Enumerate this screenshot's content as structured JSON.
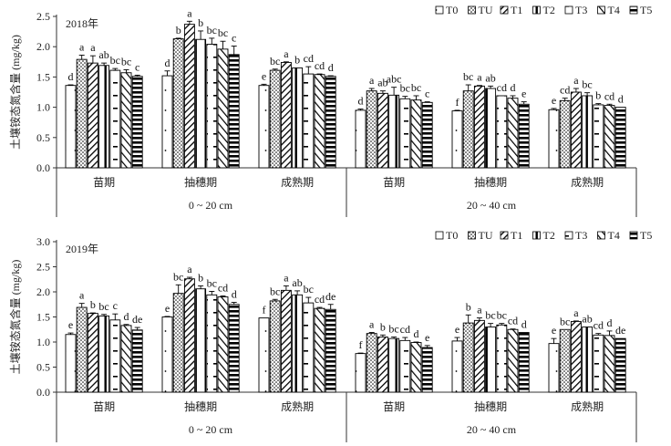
{
  "chart_data": [
    {
      "type": "bar",
      "title": "2018年",
      "ylabel": "土壤铵态氮含量 (mg/kg)",
      "ylim": [
        0,
        2.5
      ],
      "yticks": [
        "0.0",
        "0.5",
        "1.0",
        "1.5",
        "2.0",
        "2.5"
      ],
      "legend_position": "top-right",
      "depths": [
        "0 ~ 20 cm",
        "20 ~ 40 cm"
      ],
      "stages": [
        "苗期",
        "抽穗期",
        "成熟期"
      ],
      "series_names": [
        "T0",
        "TU",
        "T1",
        "T2",
        "T3",
        "T4",
        "T5"
      ],
      "groups": [
        {
          "depth": "0 ~ 20 cm",
          "stage": "苗期",
          "values": [
            1.36,
            1.79,
            1.73,
            1.69,
            1.61,
            1.57,
            1.51
          ],
          "errors": [
            0.01,
            0.07,
            0.12,
            0.04,
            0.03,
            0.05,
            0.02
          ],
          "letters": [
            "d",
            "a",
            "a",
            "ab",
            "bc",
            "bc",
            "c"
          ]
        },
        {
          "depth": "0 ~ 20 cm",
          "stage": "抽穗期",
          "values": [
            1.52,
            2.13,
            2.37,
            2.12,
            2.04,
            1.96,
            1.87
          ],
          "errors": [
            0.08,
            0.01,
            0.05,
            0.14,
            0.1,
            0.13,
            0.14
          ],
          "letters": [
            "d",
            "b",
            "a",
            "b",
            "bc",
            "bc",
            "c"
          ]
        },
        {
          "depth": "0 ~ 20 cm",
          "stage": "成熟期",
          "values": [
            1.36,
            1.61,
            1.74,
            1.65,
            1.55,
            1.54,
            1.51
          ],
          "errors": [
            0.02,
            0.02,
            0.01,
            0.0,
            0.12,
            0.01,
            0.01
          ],
          "letters": [
            "e",
            "bc",
            "a",
            "b",
            "cd",
            "cd",
            "d"
          ]
        },
        {
          "depth": "20 ~ 40 cm",
          "stage": "苗期",
          "values": [
            0.95,
            1.27,
            1.23,
            1.2,
            1.14,
            1.12,
            1.08
          ],
          "errors": [
            0.02,
            0.04,
            0.04,
            0.13,
            0.04,
            0.07,
            0.01
          ],
          "letters": [
            "d",
            "a",
            "ab",
            "abc",
            "bc",
            "bc",
            "c"
          ]
        },
        {
          "depth": "20 ~ 40 cm",
          "stage": "抽穗期",
          "values": [
            0.94,
            1.27,
            1.35,
            1.31,
            1.19,
            1.15,
            1.05
          ],
          "errors": [
            0.01,
            0.1,
            0.01,
            0.04,
            0.0,
            0.04,
            0.04
          ],
          "letters": [
            "f",
            "bc",
            "a",
            "ab",
            "cd",
            "d",
            "e"
          ]
        },
        {
          "depth": "20 ~ 40 cm",
          "stage": "成熟期",
          "values": [
            0.96,
            1.11,
            1.25,
            1.19,
            1.04,
            1.03,
            1.0
          ],
          "errors": [
            0.02,
            0.04,
            0.06,
            0.05,
            0.02,
            0.02,
            0.0
          ],
          "letters": [
            "e",
            "cd",
            "a",
            "bc",
            "b",
            "cd",
            "d"
          ]
        }
      ]
    },
    {
      "type": "bar",
      "title": "2019年",
      "ylabel": "土壤铵态氮含量 (mg/kg)",
      "ylim": [
        0,
        3.0
      ],
      "yticks": [
        "0.0",
        "0.5",
        "1.0",
        "1.5",
        "2.0",
        "2.5",
        "3.0"
      ],
      "legend_position": "top-right",
      "depths": [
        "0 ~ 20 cm",
        "20 ~ 40 cm"
      ],
      "stages": [
        "苗期",
        "抽穗期",
        "成熟期"
      ],
      "series_names": [
        "T0",
        "TU",
        "T1",
        "T2",
        "T3",
        "T4",
        "T5"
      ],
      "groups": [
        {
          "depth": "0 ~ 20 cm",
          "stage": "苗期",
          "values": [
            1.15,
            1.69,
            1.57,
            1.52,
            1.44,
            1.33,
            1.24
          ],
          "errors": [
            0.03,
            0.08,
            0.01,
            0.03,
            0.12,
            0.02,
            0.05
          ],
          "letters": [
            "e",
            "a",
            "b",
            "bc",
            "c",
            "d",
            "de"
          ]
        },
        {
          "depth": "0 ~ 20 cm",
          "stage": "抽穗期",
          "values": [
            1.5,
            1.97,
            2.26,
            2.06,
            1.94,
            1.9,
            1.75
          ],
          "errors": [
            0.01,
            0.17,
            0.03,
            0.06,
            0.07,
            0.02,
            0.04
          ],
          "letters": [
            "e",
            "bc",
            "a",
            "b",
            "bc",
            "cd",
            "d"
          ]
        },
        {
          "depth": "0 ~ 20 cm",
          "stage": "成熟期",
          "values": [
            1.48,
            1.82,
            2.03,
            1.94,
            1.78,
            1.67,
            1.65
          ],
          "errors": [
            0.0,
            0.03,
            0.09,
            0.08,
            0.11,
            0.02,
            0.1
          ],
          "letters": [
            "f",
            "bc",
            "a",
            "ab",
            "bc",
            "cd",
            "de"
          ]
        },
        {
          "depth": "20 ~ 40 cm",
          "stage": "苗期",
          "values": [
            0.77,
            1.17,
            1.1,
            1.07,
            1.03,
            0.99,
            0.89
          ],
          "errors": [
            0.01,
            0.02,
            0.04,
            0.03,
            0.06,
            0.01,
            0.04
          ],
          "letters": [
            "f",
            "a",
            "b",
            "bc",
            "cd",
            "d",
            "e"
          ]
        },
        {
          "depth": "20 ~ 40 cm",
          "stage": "抽穗期",
          "values": [
            1.02,
            1.38,
            1.43,
            1.3,
            1.34,
            1.25,
            1.19
          ],
          "errors": [
            0.07,
            0.16,
            0.05,
            0.07,
            0.03,
            0.01,
            0.0
          ],
          "letters": [
            "e",
            "b",
            "a",
            "bc",
            "bc",
            "cd",
            "d"
          ]
        },
        {
          "depth": "20 ~ 40 cm",
          "stage": "成熟期",
          "values": [
            0.97,
            1.25,
            1.41,
            1.3,
            1.14,
            1.13,
            1.07
          ],
          "errors": [
            0.1,
            0.0,
            0.01,
            0.0,
            0.03,
            0.09,
            0.0
          ],
          "letters": [
            "e",
            "bc",
            "a",
            "ab",
            "cd",
            "d",
            "de"
          ]
        }
      ]
    }
  ]
}
